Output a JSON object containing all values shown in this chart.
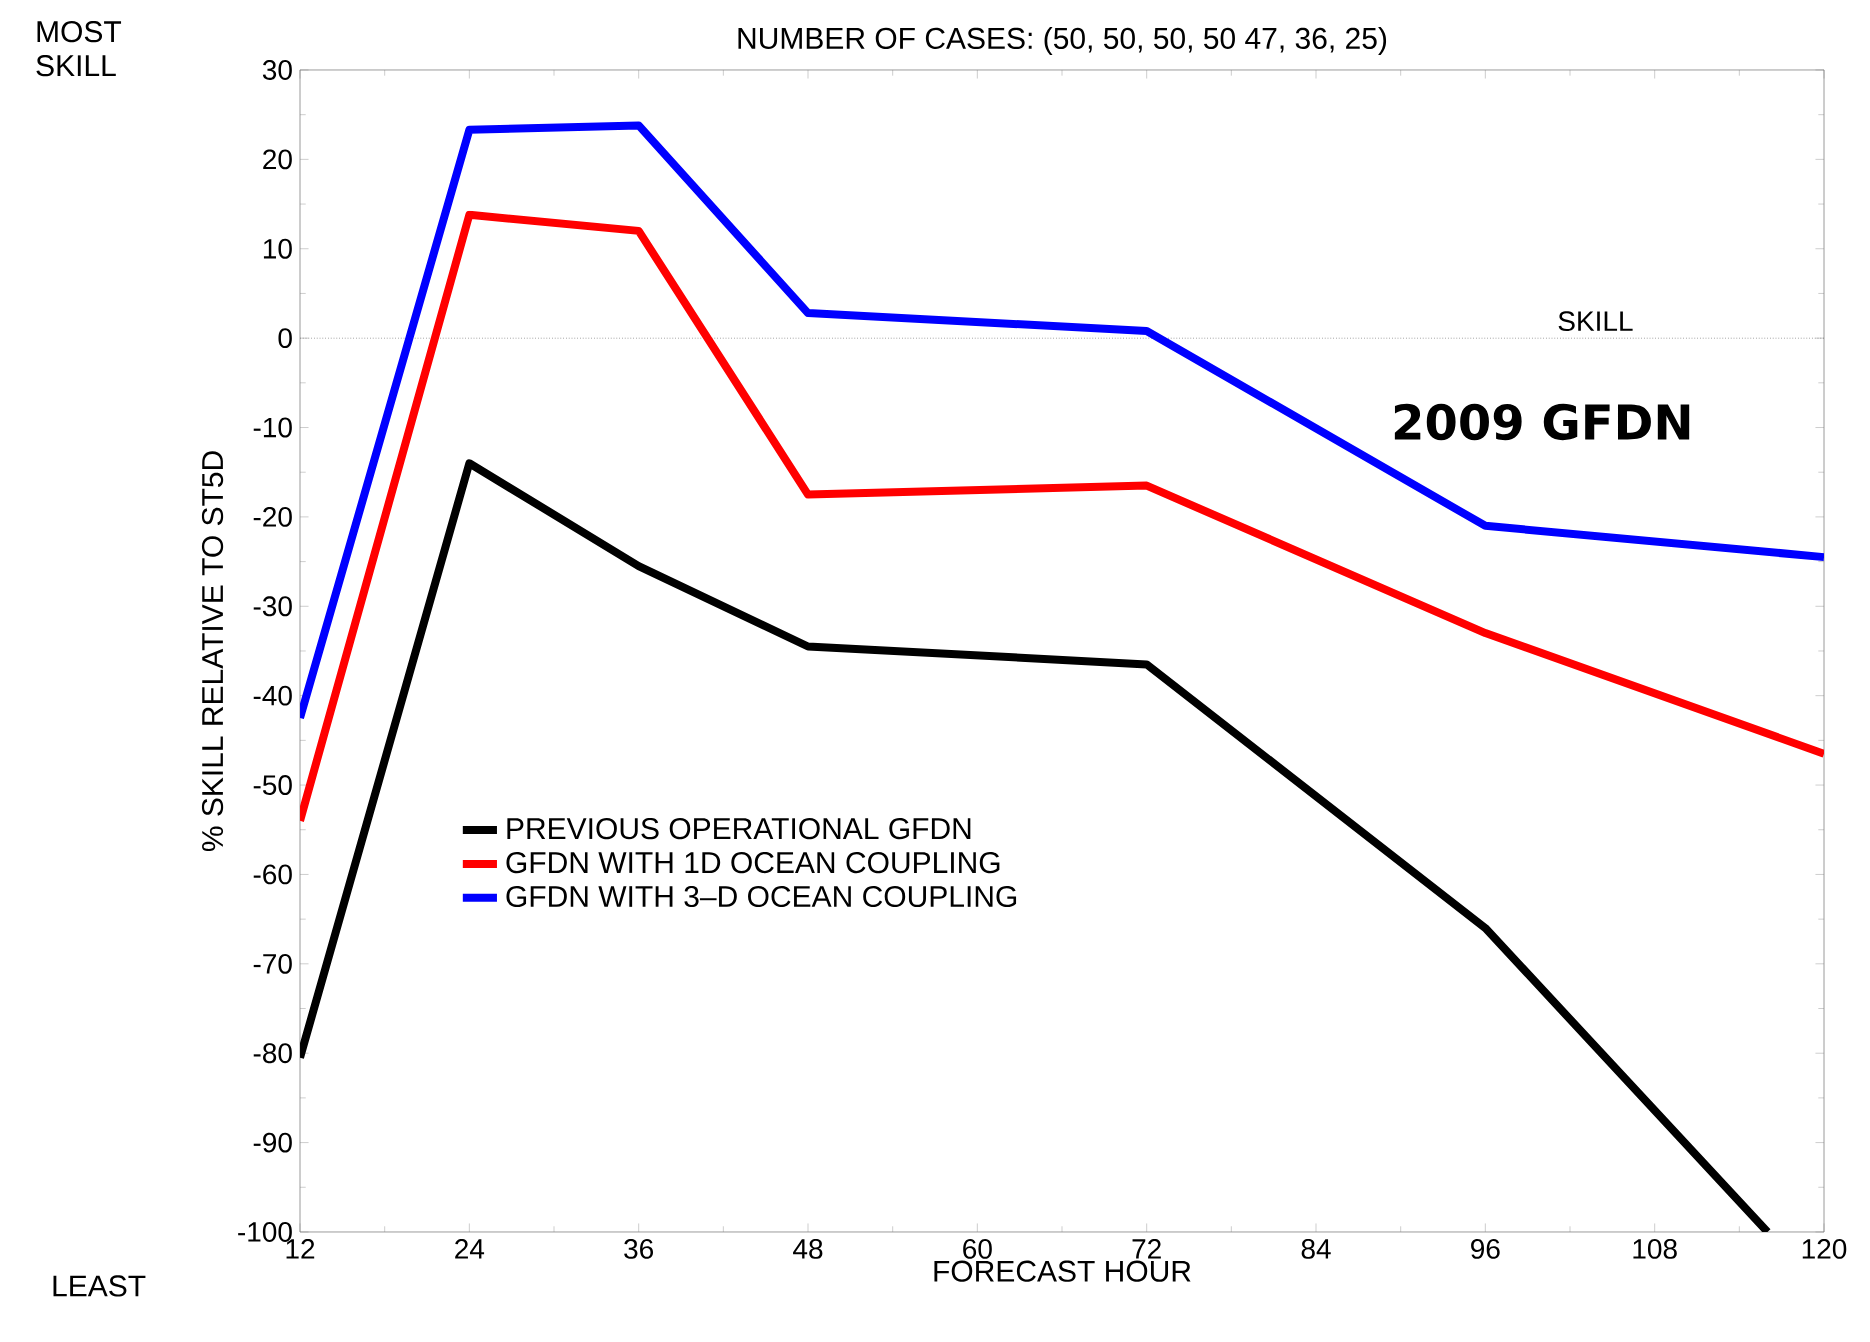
{
  "chart_data": {
    "type": "line",
    "title": "NUMBER OF CASES:  (50,  50, 50, 50 47, 36, 25)",
    "xlabel": "FORECAST HOUR",
    "ylabel": "% SKILL RELATIVE TO ST5D",
    "x": [
      12,
      24,
      36,
      48,
      72,
      96,
      120
    ],
    "series": [
      {
        "name": "PREVIOUS OPERATIONAL GFDN",
        "color": "#000000",
        "x": [
          12,
          24,
          36,
          48,
          72,
          96,
          116
        ],
        "values": [
          -80.5,
          -14,
          -25.5,
          -34.5,
          -36.5,
          -66,
          -100
        ]
      },
      {
        "name": "GFDN WITH 1D OCEAN COUPLING",
        "color": "#ff0000",
        "values": [
          -54,
          13.8,
          12,
          -17.5,
          -16.5,
          -33,
          -46.5
        ]
      },
      {
        "name": "GFDN WITH 3–D OCEAN COUPLING",
        "color": "#0000ff",
        "values": [
          -42.5,
          23.3,
          23.8,
          2.8,
          0.8,
          -21,
          -24.5
        ]
      }
    ],
    "xlim": [
      12,
      120
    ],
    "xticks": [
      12,
      24,
      36,
      48,
      60,
      72,
      84,
      96,
      108,
      120
    ],
    "ylim": [
      -100,
      30
    ],
    "yticks": [
      -100,
      -90,
      -80,
      -70,
      -60,
      -50,
      -40,
      -30,
      -20,
      -10,
      0,
      10,
      20,
      30
    ],
    "ref_lines": [
      {
        "axis": "y",
        "value": 0,
        "label": "SKILL",
        "line_style": "dotted",
        "color": "#666666"
      }
    ],
    "annotations": [
      "MOST SKILL",
      "LEAST",
      "2009 GFDN"
    ],
    "legend": "bottom left",
    "grid": false,
    "marker": "none",
    "line_style": "solid"
  }
}
